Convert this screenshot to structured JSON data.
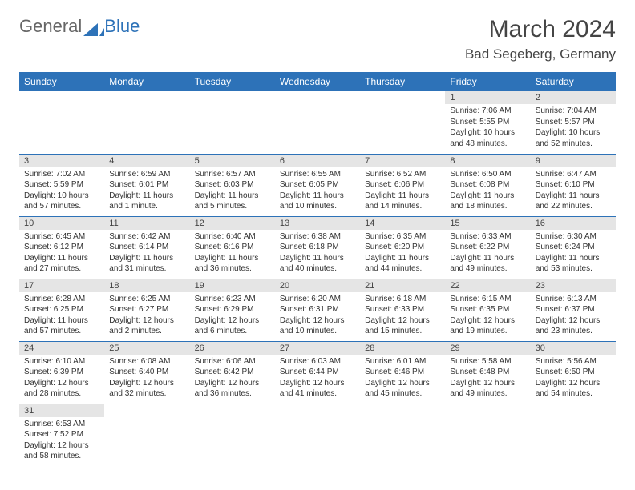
{
  "logo": {
    "part1": "General",
    "part2": "Blue"
  },
  "title": "March 2024",
  "location": "Bad Segeberg, Germany",
  "colors": {
    "header_bg": "#2d72b8",
    "header_text": "#ffffff",
    "daynum_bg": "#e5e5e5",
    "text": "#333333",
    "divider": "#2d72b8"
  },
  "weekdays": [
    "Sunday",
    "Monday",
    "Tuesday",
    "Wednesday",
    "Thursday",
    "Friday",
    "Saturday"
  ],
  "weeks": [
    [
      null,
      null,
      null,
      null,
      null,
      {
        "n": "1",
        "sr": "Sunrise: 7:06 AM",
        "ss": "Sunset: 5:55 PM",
        "d1": "Daylight: 10 hours",
        "d2": "and 48 minutes."
      },
      {
        "n": "2",
        "sr": "Sunrise: 7:04 AM",
        "ss": "Sunset: 5:57 PM",
        "d1": "Daylight: 10 hours",
        "d2": "and 52 minutes."
      }
    ],
    [
      {
        "n": "3",
        "sr": "Sunrise: 7:02 AM",
        "ss": "Sunset: 5:59 PM",
        "d1": "Daylight: 10 hours",
        "d2": "and 57 minutes."
      },
      {
        "n": "4",
        "sr": "Sunrise: 6:59 AM",
        "ss": "Sunset: 6:01 PM",
        "d1": "Daylight: 11 hours",
        "d2": "and 1 minute."
      },
      {
        "n": "5",
        "sr": "Sunrise: 6:57 AM",
        "ss": "Sunset: 6:03 PM",
        "d1": "Daylight: 11 hours",
        "d2": "and 5 minutes."
      },
      {
        "n": "6",
        "sr": "Sunrise: 6:55 AM",
        "ss": "Sunset: 6:05 PM",
        "d1": "Daylight: 11 hours",
        "d2": "and 10 minutes."
      },
      {
        "n": "7",
        "sr": "Sunrise: 6:52 AM",
        "ss": "Sunset: 6:06 PM",
        "d1": "Daylight: 11 hours",
        "d2": "and 14 minutes."
      },
      {
        "n": "8",
        "sr": "Sunrise: 6:50 AM",
        "ss": "Sunset: 6:08 PM",
        "d1": "Daylight: 11 hours",
        "d2": "and 18 minutes."
      },
      {
        "n": "9",
        "sr": "Sunrise: 6:47 AM",
        "ss": "Sunset: 6:10 PM",
        "d1": "Daylight: 11 hours",
        "d2": "and 22 minutes."
      }
    ],
    [
      {
        "n": "10",
        "sr": "Sunrise: 6:45 AM",
        "ss": "Sunset: 6:12 PM",
        "d1": "Daylight: 11 hours",
        "d2": "and 27 minutes."
      },
      {
        "n": "11",
        "sr": "Sunrise: 6:42 AM",
        "ss": "Sunset: 6:14 PM",
        "d1": "Daylight: 11 hours",
        "d2": "and 31 minutes."
      },
      {
        "n": "12",
        "sr": "Sunrise: 6:40 AM",
        "ss": "Sunset: 6:16 PM",
        "d1": "Daylight: 11 hours",
        "d2": "and 36 minutes."
      },
      {
        "n": "13",
        "sr": "Sunrise: 6:38 AM",
        "ss": "Sunset: 6:18 PM",
        "d1": "Daylight: 11 hours",
        "d2": "and 40 minutes."
      },
      {
        "n": "14",
        "sr": "Sunrise: 6:35 AM",
        "ss": "Sunset: 6:20 PM",
        "d1": "Daylight: 11 hours",
        "d2": "and 44 minutes."
      },
      {
        "n": "15",
        "sr": "Sunrise: 6:33 AM",
        "ss": "Sunset: 6:22 PM",
        "d1": "Daylight: 11 hours",
        "d2": "and 49 minutes."
      },
      {
        "n": "16",
        "sr": "Sunrise: 6:30 AM",
        "ss": "Sunset: 6:24 PM",
        "d1": "Daylight: 11 hours",
        "d2": "and 53 minutes."
      }
    ],
    [
      {
        "n": "17",
        "sr": "Sunrise: 6:28 AM",
        "ss": "Sunset: 6:25 PM",
        "d1": "Daylight: 11 hours",
        "d2": "and 57 minutes."
      },
      {
        "n": "18",
        "sr": "Sunrise: 6:25 AM",
        "ss": "Sunset: 6:27 PM",
        "d1": "Daylight: 12 hours",
        "d2": "and 2 minutes."
      },
      {
        "n": "19",
        "sr": "Sunrise: 6:23 AM",
        "ss": "Sunset: 6:29 PM",
        "d1": "Daylight: 12 hours",
        "d2": "and 6 minutes."
      },
      {
        "n": "20",
        "sr": "Sunrise: 6:20 AM",
        "ss": "Sunset: 6:31 PM",
        "d1": "Daylight: 12 hours",
        "d2": "and 10 minutes."
      },
      {
        "n": "21",
        "sr": "Sunrise: 6:18 AM",
        "ss": "Sunset: 6:33 PM",
        "d1": "Daylight: 12 hours",
        "d2": "and 15 minutes."
      },
      {
        "n": "22",
        "sr": "Sunrise: 6:15 AM",
        "ss": "Sunset: 6:35 PM",
        "d1": "Daylight: 12 hours",
        "d2": "and 19 minutes."
      },
      {
        "n": "23",
        "sr": "Sunrise: 6:13 AM",
        "ss": "Sunset: 6:37 PM",
        "d1": "Daylight: 12 hours",
        "d2": "and 23 minutes."
      }
    ],
    [
      {
        "n": "24",
        "sr": "Sunrise: 6:10 AM",
        "ss": "Sunset: 6:39 PM",
        "d1": "Daylight: 12 hours",
        "d2": "and 28 minutes."
      },
      {
        "n": "25",
        "sr": "Sunrise: 6:08 AM",
        "ss": "Sunset: 6:40 PM",
        "d1": "Daylight: 12 hours",
        "d2": "and 32 minutes."
      },
      {
        "n": "26",
        "sr": "Sunrise: 6:06 AM",
        "ss": "Sunset: 6:42 PM",
        "d1": "Daylight: 12 hours",
        "d2": "and 36 minutes."
      },
      {
        "n": "27",
        "sr": "Sunrise: 6:03 AM",
        "ss": "Sunset: 6:44 PM",
        "d1": "Daylight: 12 hours",
        "d2": "and 41 minutes."
      },
      {
        "n": "28",
        "sr": "Sunrise: 6:01 AM",
        "ss": "Sunset: 6:46 PM",
        "d1": "Daylight: 12 hours",
        "d2": "and 45 minutes."
      },
      {
        "n": "29",
        "sr": "Sunrise: 5:58 AM",
        "ss": "Sunset: 6:48 PM",
        "d1": "Daylight: 12 hours",
        "d2": "and 49 minutes."
      },
      {
        "n": "30",
        "sr": "Sunrise: 5:56 AM",
        "ss": "Sunset: 6:50 PM",
        "d1": "Daylight: 12 hours",
        "d2": "and 54 minutes."
      }
    ],
    [
      {
        "n": "31",
        "sr": "Sunrise: 6:53 AM",
        "ss": "Sunset: 7:52 PM",
        "d1": "Daylight: 12 hours",
        "d2": "and 58 minutes."
      },
      null,
      null,
      null,
      null,
      null,
      null
    ]
  ]
}
